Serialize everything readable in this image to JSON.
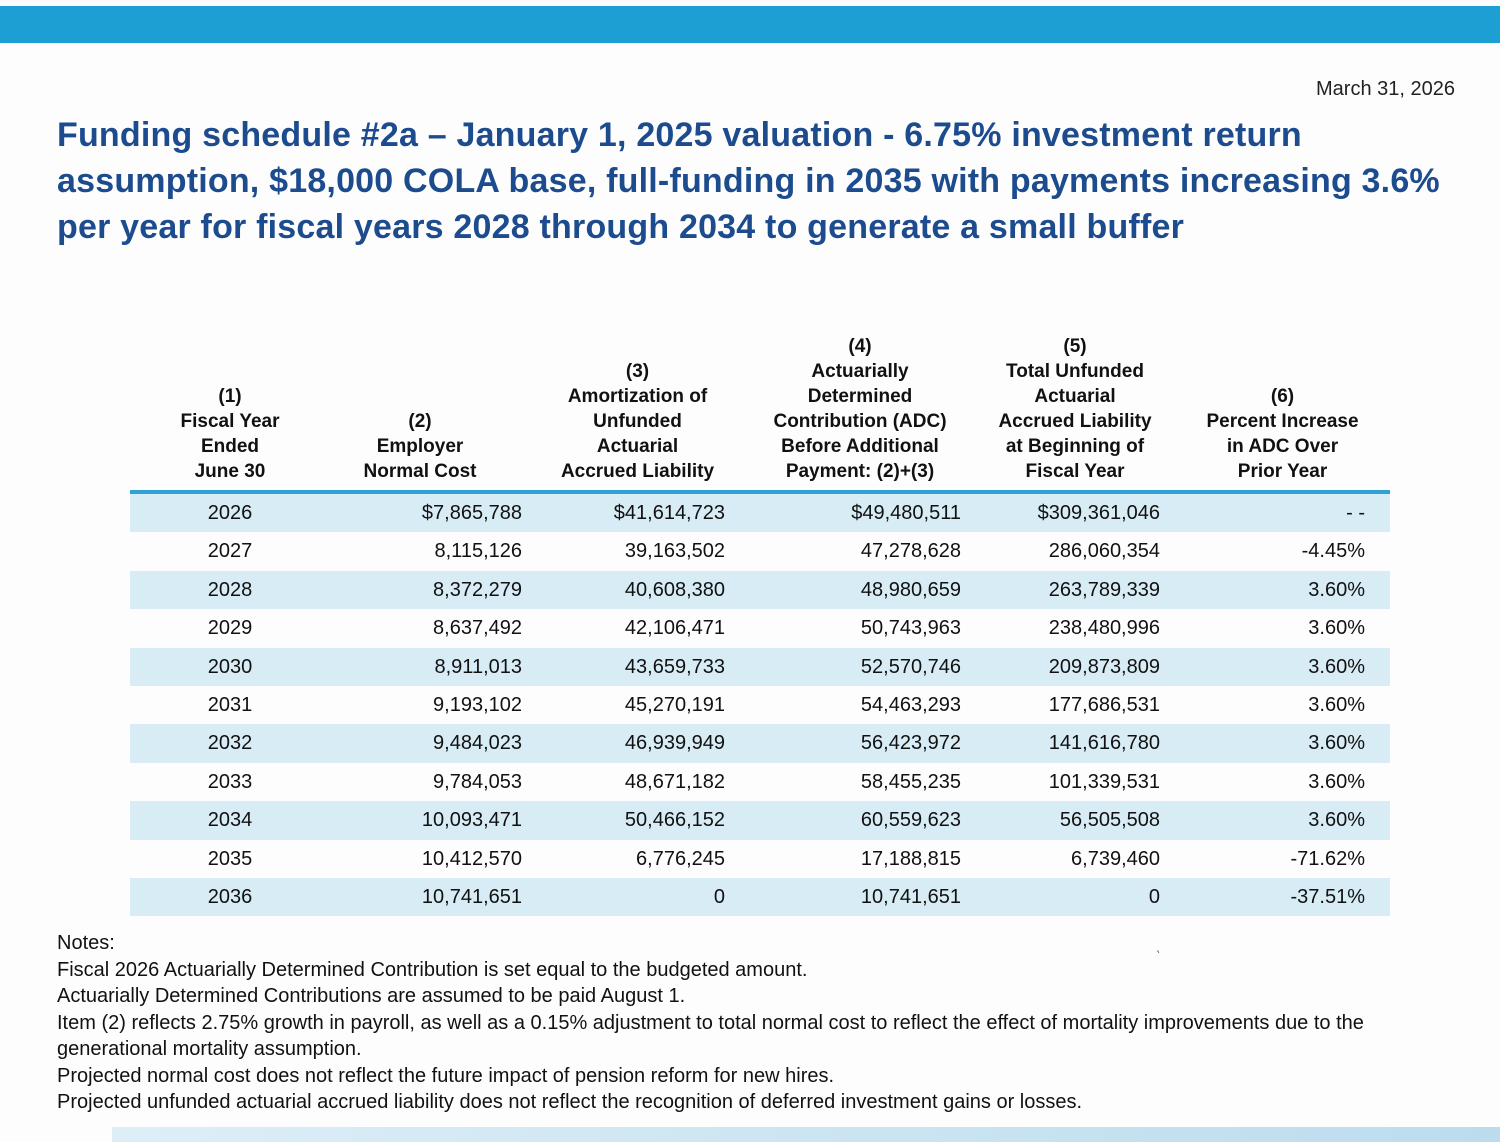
{
  "header": {
    "date": "March 31, 2026",
    "title": "Funding schedule #2a – January 1, 2025 valuation - 6.75% investment return assumption, $18,000 COLA base, full-funding in 2035 with payments increasing 3.6% per year for fiscal years 2028 through 2034 to generate a small buffer"
  },
  "table": {
    "columns": [
      "(1)\nFiscal Year\nEnded\nJune 30",
      "(2)\nEmployer\nNormal Cost",
      "(3)\nAmortization of\nUnfunded\nActuarial\nAccrued Liability",
      "(4)\nActuarially\nDetermined\nContribution (ADC)\nBefore Additional\nPayment: (2)+(3)",
      "(5)\nTotal Unfunded\nActuarial\nAccrued Liability\nat Beginning of\nFiscal Year",
      "(6)\nPercent Increase\nin ADC Over\nPrior Year"
    ],
    "rows": [
      [
        "2026",
        "$7,865,788",
        "$41,614,723",
        "$49,480,511",
        "$309,361,046",
        "- -"
      ],
      [
        "2027",
        "8,115,126",
        "39,163,502",
        "47,278,628",
        "286,060,354",
        "-4.45%"
      ],
      [
        "2028",
        "8,372,279",
        "40,608,380",
        "48,980,659",
        "263,789,339",
        "3.60%"
      ],
      [
        "2029",
        "8,637,492",
        "42,106,471",
        "50,743,963",
        "238,480,996",
        "3.60%"
      ],
      [
        "2030",
        "8,911,013",
        "43,659,733",
        "52,570,746",
        "209,873,809",
        "3.60%"
      ],
      [
        "2031",
        "9,193,102",
        "45,270,191",
        "54,463,293",
        "177,686,531",
        "3.60%"
      ],
      [
        "2032",
        "9,484,023",
        "46,939,949",
        "56,423,972",
        "141,616,780",
        "3.60%"
      ],
      [
        "2033",
        "9,784,053",
        "48,671,182",
        "58,455,235",
        "101,339,531",
        "3.60%"
      ],
      [
        "2034",
        "10,093,471",
        "50,466,152",
        "60,559,623",
        "56,505,508",
        "3.60%"
      ],
      [
        "2035",
        "10,412,570",
        "6,776,245",
        "17,188,815",
        "6,739,460",
        "-71.62%"
      ],
      [
        "2036",
        "10,741,651",
        "0",
        "10,741,651",
        "0",
        "-37.51%"
      ]
    ]
  },
  "notes": {
    "label": "Notes:",
    "items": [
      "Fiscal 2026 Actuarially Determined Contribution is set equal to the budgeted amount.",
      "Actuarially Determined Contributions are assumed to be paid August 1.",
      "Item (2) reflects 2.75% growth in payroll, as well as a 0.15% adjustment to total normal cost to reflect the effect of mortality improvements due to the generational mortality assumption.",
      "Projected normal cost does not reflect the future impact of pension reform for new hires.",
      "Projected unfunded actuarial accrued liability does not reflect the recognition of deferred investment gains or losses."
    ]
  },
  "colors": {
    "top_bar": "#1d9fd4",
    "header_rule": "#2da2d4",
    "row_shade": "#d8ecf6",
    "title_text": "#1c4b8e"
  }
}
